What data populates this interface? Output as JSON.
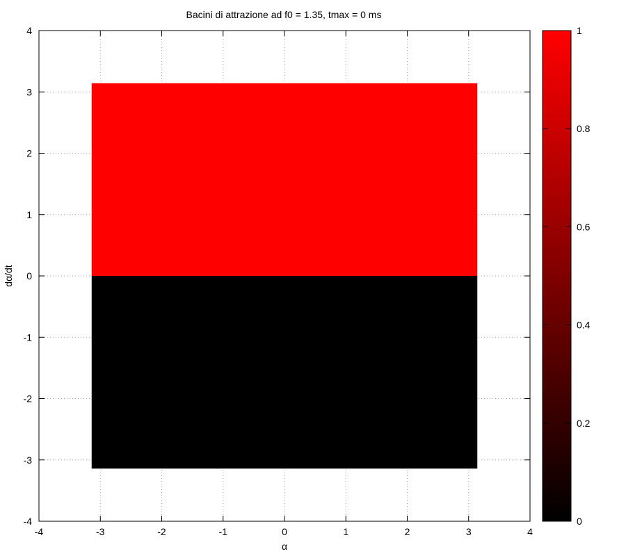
{
  "chart_data": {
    "type": "heatmap",
    "title": "Bacini di attrazione ad f0 = 1.35, tmax = 0 ms",
    "xlabel": "α",
    "ylabel": "dα/dt",
    "xlim": [
      -4,
      4
    ],
    "ylim": [
      -4,
      4
    ],
    "x_ticks": [
      -4,
      -3,
      -2,
      -1,
      0,
      1,
      2,
      3,
      4
    ],
    "y_ticks": [
      -4,
      -3,
      -2,
      -1,
      0,
      1,
      2,
      3,
      4
    ],
    "x_tick_labels": [
      "-4",
      "-3",
      "-2",
      "-1",
      "0",
      "1",
      "2",
      "3",
      "4"
    ],
    "y_tick_labels": [
      "-4",
      "-3",
      "-2",
      "-1",
      "0",
      "1",
      "2",
      "3",
      "4"
    ],
    "grid": true,
    "grid_style": "dotted",
    "regions": [
      {
        "x": [
          -3.14159,
          3.14159
        ],
        "y": [
          0,
          3.14159
        ],
        "value": 1
      },
      {
        "x": [
          -3.14159,
          3.14159
        ],
        "y": [
          -3.14159,
          0
        ],
        "value": 0
      }
    ],
    "colorbar": {
      "range": [
        0,
        1
      ],
      "ticks": [
        0,
        0.2,
        0.4,
        0.6,
        0.8,
        1
      ],
      "tick_labels": [
        "0",
        "0.2",
        "0.4",
        "0.6",
        "0.8",
        "1"
      ],
      "low_color": "#000000",
      "high_color": "#ff0000"
    }
  }
}
